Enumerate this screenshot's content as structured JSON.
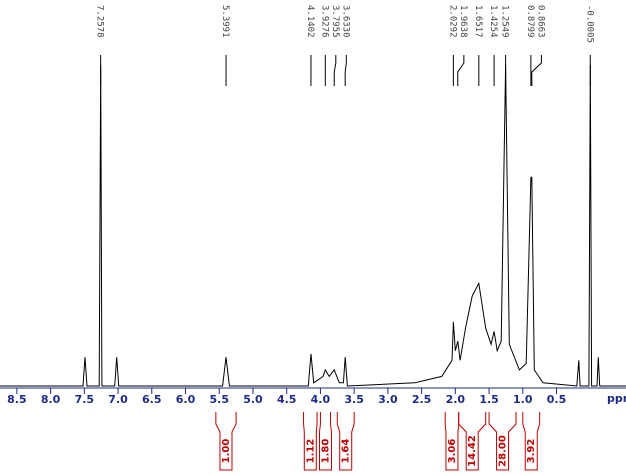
{
  "chart_data": {
    "type": "line",
    "x_label": "ppm",
    "color": "#000000",
    "xlim": [
      8.75,
      -0.53
    ],
    "ylim": [
      0,
      100
    ],
    "xticks": [
      8.5,
      {
        "value": 8,
        "label": "8.0"
      },
      7.5,
      {
        "value": 7,
        "label": "7.0"
      },
      6.5,
      {
        "value": 6,
        "label": "6.0"
      },
      5.5,
      {
        "value": 5,
        "label": "5.0"
      },
      4.5,
      {
        "value": 4,
        "label": "4.0"
      },
      3.5,
      {
        "value": 3,
        "label": "3.0"
      },
      2.5,
      {
        "value": 2,
        "label": "2.0"
      },
      1.5,
      {
        "value": 1,
        "label": "1.0"
      },
      0.5
    ],
    "x": [
      8.75,
      7.52,
      7.49,
      7.46,
      7.28,
      7.2578,
      7.24,
      7.05,
      7.02,
      6.99,
      5.45,
      5.3991,
      5.35,
      4.18,
      4.1402,
      4.1,
      3.96,
      3.9276,
      3.87,
      3.7955,
      3.72,
      3.66,
      3.633,
      3.6,
      2.6,
      2.2,
      2.05,
      2.0292,
      2.0,
      1.9638,
      1.93,
      1.85,
      1.75,
      1.6517,
      1.55,
      1.47,
      1.4254,
      1.38,
      1.32,
      1.2549,
      1.2,
      1.05,
      0.95,
      0.8799,
      0.8663,
      0.83,
      0.7,
      0.2,
      0.17,
      0.15,
      0.02,
      -0.0005,
      -0.02,
      -0.1,
      -0.12,
      -0.14,
      -0.53
    ],
    "values": [
      0,
      0,
      9,
      0,
      0,
      100,
      0,
      0,
      9,
      0,
      0,
      9,
      0,
      0,
      10,
      1,
      3,
      5,
      3,
      5,
      1,
      1,
      9,
      0,
      1,
      3,
      8,
      20,
      11,
      14,
      8,
      18,
      28,
      32,
      18,
      13,
      17,
      11,
      14,
      100,
      13,
      5,
      7,
      65,
      65,
      5,
      1,
      0,
      8,
      0,
      0,
      100,
      0,
      0,
      9,
      0,
      0
    ],
    "peak_labels": [
      7.2578,
      5.3991,
      4.1402,
      3.9276,
      3.7955,
      {
        "value": 3.633,
        "label": "3.6330"
      },
      2.0292,
      1.9638,
      1.6517,
      1.4254,
      1.2549,
      0.8799,
      0.8663,
      -0.0005
    ],
    "integrals": {
      "color": "#c00000",
      "ranges": [
        [
          5.55,
          5.25
        ],
        [
          4.25,
          4.05
        ],
        [
          4.0,
          3.85
        ],
        [
          3.75,
          3.5
        ],
        [
          2.15,
          1.95
        ],
        [
          1.95,
          1.55
        ],
        [
          1.5,
          1.1
        ],
        [
          1.0,
          0.75
        ]
      ],
      "values": [
        1,
        1.12,
        1.8,
        1.64,
        3.06,
        14.42,
        28,
        3.92
      ],
      "value_labels": [
        "1.00",
        "1.12",
        "1.80",
        "1.64",
        "3.06",
        "14.42",
        "28.00",
        "3.92"
      ]
    }
  }
}
